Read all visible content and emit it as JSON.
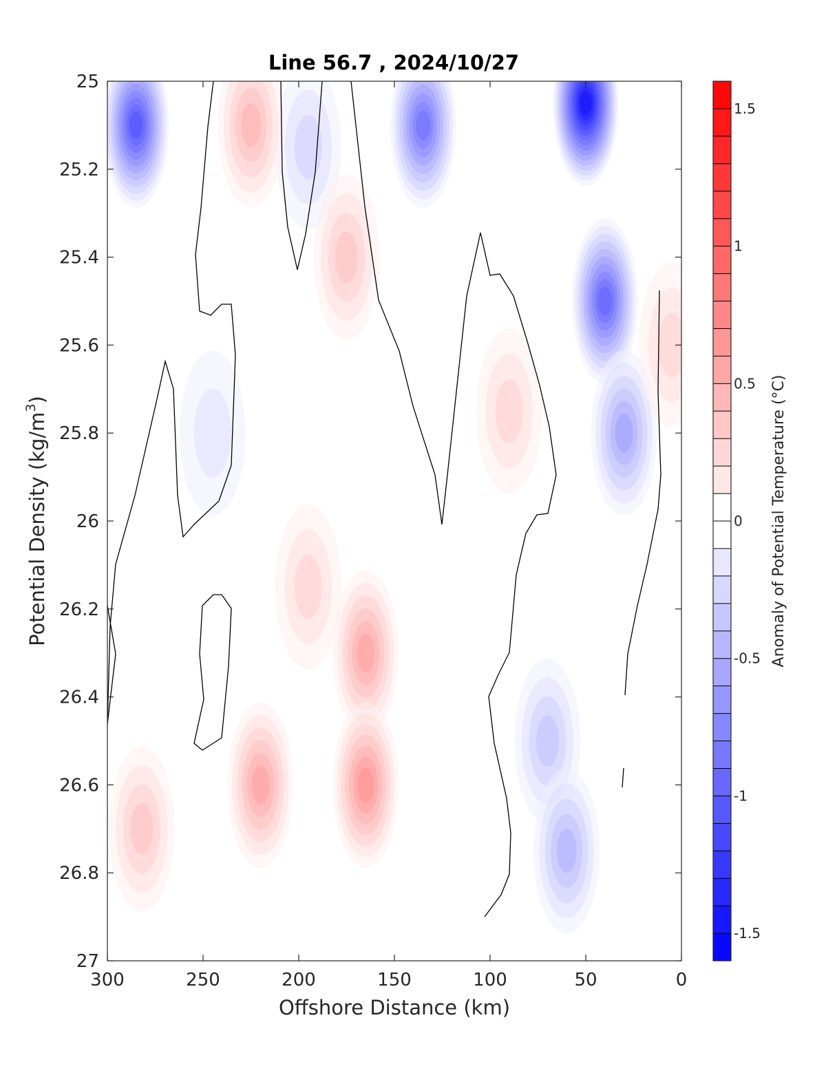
{
  "chart_data": {
    "type": "contour",
    "title": "Line 56.7 , 2024/10/27",
    "xlabel": "Offshore Distance (km)",
    "ylabel_main": "Potential Density (kg/m",
    "ylabel_sup": "3",
    "ylabel_close": ")",
    "xlim": [
      300,
      0
    ],
    "ylim": [
      25,
      27
    ],
    "xticks": [
      300,
      250,
      200,
      150,
      100,
      50,
      0
    ],
    "xtick_labels": [
      "300",
      "250",
      "200",
      "150",
      "100",
      "50",
      "0"
    ],
    "yticks": [
      25,
      25.2,
      25.4,
      25.6,
      25.8,
      26,
      26.2,
      26.4,
      26.6,
      26.8,
      27
    ],
    "ytick_labels": [
      "25",
      "25.2",
      "25.4",
      "25.6",
      "25.8",
      "26",
      "26.2",
      "26.4",
      "26.6",
      "26.8",
      "27"
    ],
    "colorbar": {
      "label": "Anomaly of Potential Temperature (°C)",
      "range": [
        -1.6,
        1.6
      ],
      "step": 0.1,
      "ticks": [
        1.5,
        1,
        0.5,
        0,
        -0.5,
        -1,
        -1.5
      ],
      "tick_labels": [
        "1.5",
        "1",
        "0.5",
        "0",
        "-0.5",
        "-1",
        "-1.5"
      ],
      "colormap": "blue-white-red",
      "neg_color": "#0000ff",
      "pos_color": "#ff0000",
      "zero_color": "#ffffff"
    },
    "grid": false,
    "zero_contour": true,
    "anomaly_features": [
      {
        "x": 285,
        "y": 25.1,
        "value": -1.1
      },
      {
        "x": 195,
        "y": 25.15,
        "value": -0.3
      },
      {
        "x": 225,
        "y": 25.1,
        "value": 0.5
      },
      {
        "x": 175,
        "y": 25.4,
        "value": 0.4
      },
      {
        "x": 195,
        "y": 26.15,
        "value": 0.35
      },
      {
        "x": 165,
        "y": 26.3,
        "value": 0.55
      },
      {
        "x": 165,
        "y": 26.6,
        "value": 0.7
      },
      {
        "x": 220,
        "y": 26.6,
        "value": 0.6
      },
      {
        "x": 282,
        "y": 26.7,
        "value": 0.4
      },
      {
        "x": 135,
        "y": 25.1,
        "value": -0.9
      },
      {
        "x": 50,
        "y": 25.05,
        "value": -1.5
      },
      {
        "x": 40,
        "y": 25.5,
        "value": -1.0
      },
      {
        "x": 30,
        "y": 25.8,
        "value": -0.6
      },
      {
        "x": 90,
        "y": 25.75,
        "value": 0.3
      },
      {
        "x": 70,
        "y": 26.5,
        "value": -0.4
      },
      {
        "x": 60,
        "y": 26.75,
        "value": -0.5
      },
      {
        "x": 245,
        "y": 25.8,
        "value": -0.2
      },
      {
        "x": 5,
        "y": 25.6,
        "value": 0.3
      }
    ]
  }
}
